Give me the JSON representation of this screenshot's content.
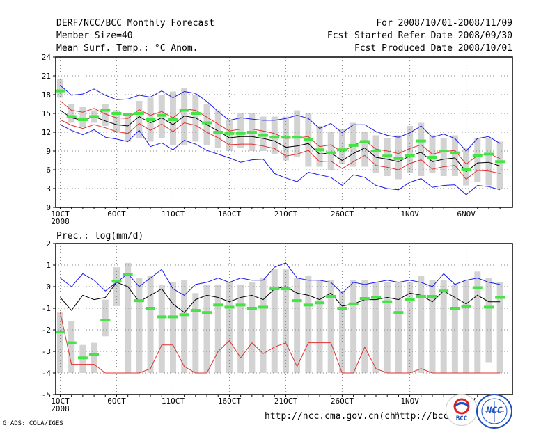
{
  "header": {
    "title": "DERF/NCC/BCC Monthly Forecast",
    "member_size": "Member Size=40",
    "variable": "Mean Surf. Temp.: °C Anom.",
    "period": "For 2008/10/01-2008/11/09",
    "refer_date": "Fcst Started Refer Date 2008/09/30",
    "produced_date": "Fcst Produced Date 2008/10/01"
  },
  "footer": {
    "grads_credit": "GrADS: COLA/IGES",
    "url_ncc": "http://ncc.cma.gov.cn(ch)",
    "url_bcc": "http://bcc.",
    "logo_bcc": "BCC",
    "logo_ncc": "NCC"
  },
  "colors": {
    "ensemble_bar": "#d3d3d3",
    "observation": "#44e444",
    "mean": "#000000",
    "spread_inner": "#e03030",
    "spread_outer": "#1a1aee"
  },
  "chart_data": [
    {
      "type": "line",
      "title": "Mean Surf. Temp.: °C Anom.",
      "ylim": [
        0,
        24
      ],
      "yticks": [
        "0",
        "3",
        "6",
        "9",
        "12",
        "15",
        "18",
        "21",
        "24"
      ],
      "x": [
        1,
        2,
        3,
        4,
        5,
        6,
        7,
        8,
        9,
        10,
        11,
        12,
        13,
        14,
        15,
        16,
        17,
        18,
        19,
        20,
        21,
        22,
        23,
        24,
        25,
        26,
        27,
        28,
        29,
        30,
        31,
        32,
        33,
        34,
        35,
        36,
        37,
        38,
        39,
        40
      ],
      "xtick_labels": [
        "1OCT",
        "6OCT",
        "11OCT",
        "16OCT",
        "21OCT",
        "26OCT",
        "1NOV",
        "6NOV"
      ],
      "xtick_positions": [
        1,
        6,
        11,
        16,
        21,
        26,
        32,
        37
      ],
      "xtick_sublabel": "2008",
      "grid": true,
      "boxes_low": [
        17.5,
        13.5,
        12.8,
        13.5,
        13,
        12,
        10.5,
        11,
        10.5,
        11,
        10,
        10,
        10.5,
        10,
        9.5,
        9,
        9.5,
        9,
        9,
        8.5,
        7.5,
        8,
        6.5,
        6.5,
        6,
        7,
        6.5,
        6.5,
        5.5,
        5,
        4.5,
        5.5,
        5,
        5.5,
        5,
        5,
        3.5,
        4,
        3.5,
        3
      ],
      "boxes_high": [
        20.5,
        16.5,
        16,
        15.5,
        16.5,
        15.5,
        15,
        17,
        17.5,
        18,
        18.5,
        19,
        18,
        16.5,
        15.5,
        14,
        15,
        15,
        14.5,
        14.5,
        14.5,
        15.5,
        15,
        13,
        12,
        12.5,
        13.5,
        12,
        11.5,
        11,
        11.5,
        13,
        13.5,
        11.5,
        11,
        11.5,
        9.5,
        11,
        11,
        10.5
      ],
      "series": [
        {
          "name": "ensemble mean",
          "values": [
            15.5,
            14.3,
            13.9,
            14.5,
            13.8,
            13.2,
            13.0,
            14.5,
            13.5,
            14.3,
            13.2,
            14.6,
            14.3,
            13.2,
            12.2,
            11.1,
            11.3,
            11.3,
            11.0,
            10.6,
            9.6,
            9.8,
            10.2,
            8.5,
            8.7,
            7.5,
            8.6,
            9.5,
            8.0,
            7.7,
            7.3,
            8.2,
            8.8,
            7.3,
            7.7,
            7.9,
            5.7,
            7.1,
            7.2,
            6.6
          ]
        },
        {
          "name": "inner spread upper",
          "values": [
            17.0,
            15.5,
            15.2,
            15.8,
            14.9,
            14.3,
            14.2,
            15.6,
            14.7,
            15.3,
            14.3,
            15.7,
            15.5,
            14.4,
            13.3,
            12.2,
            12.5,
            12.5,
            12.2,
            11.8,
            11.0,
            11.1,
            11.3,
            9.7,
            10.0,
            8.8,
            9.9,
            10.7,
            9.3,
            9.0,
            8.6,
            9.4,
            10.0,
            8.5,
            8.9,
            9.1,
            6.9,
            8.3,
            8.6,
            7.8
          ]
        },
        {
          "name": "inner spread lower",
          "values": [
            14.0,
            13.1,
            12.6,
            13.2,
            12.7,
            12.1,
            11.8,
            13.4,
            12.3,
            13.3,
            12.1,
            13.5,
            13.1,
            12.0,
            11.1,
            10.0,
            10.1,
            10.1,
            9.8,
            9.4,
            8.2,
            8.5,
            9.1,
            7.3,
            7.4,
            6.2,
            7.3,
            8.3,
            6.7,
            6.4,
            6.0,
            7.0,
            7.6,
            6.1,
            6.5,
            6.7,
            4.5,
            5.9,
            5.8,
            5.4
          ]
        },
        {
          "name": "outer spread upper",
          "values": [
            19.5,
            17.9,
            18.1,
            18.9,
            17.9,
            17.2,
            17.3,
            17.9,
            17.6,
            18.6,
            17.5,
            18.5,
            18.2,
            16.9,
            15.3,
            13.9,
            14.3,
            14.1,
            13.9,
            13.9,
            14.2,
            14.7,
            14.2,
            12.6,
            13.4,
            11.9,
            13.2,
            13.2,
            12.1,
            11.5,
            11.2,
            11.9,
            13.0,
            11.2,
            11.7,
            11.0,
            9.0,
            11.0,
            11.3,
            10.2
          ]
        },
        {
          "name": "outer spread lower",
          "values": [
            13.2,
            12.3,
            11.6,
            12.4,
            11.2,
            10.9,
            10.5,
            12.3,
            9.7,
            10.3,
            9.2,
            10.7,
            10.1,
            9.1,
            8.5,
            7.9,
            7.2,
            7.6,
            7.7,
            5.4,
            4.7,
            4.1,
            5.6,
            5.2,
            4.8,
            3.5,
            5.2,
            4.8,
            3.5,
            3.0,
            2.8,
            4.0,
            4.6,
            3.2,
            3.5,
            3.6,
            2.0,
            3.5,
            3.3,
            2.8
          ]
        },
        {
          "name": "observation",
          "values": [
            18.6,
            14.5,
            14.0,
            14.5,
            15.5,
            15.0,
            14.8,
            15.0,
            14.0,
            14.7,
            14.0,
            15.5,
            15.0,
            13.5,
            12.0,
            11.8,
            11.8,
            12.0,
            11.5,
            11.2,
            11.2,
            11.2,
            10.8,
            9.2,
            8.7,
            9.2,
            9.9,
            10.5,
            9.0,
            8.2,
            7.8,
            8.3,
            10.6,
            8.0,
            9.0,
            8.7,
            6.0,
            8.3,
            8.5,
            7.3
          ]
        }
      ]
    },
    {
      "type": "line",
      "title": "Prec.: log(mm/d)",
      "ylim": [
        -5,
        2
      ],
      "yticks": [
        "-5",
        "-4",
        "-3",
        "-2",
        "-1",
        "0",
        "1",
        "2"
      ],
      "x": [
        1,
        2,
        3,
        4,
        5,
        6,
        7,
        8,
        9,
        10,
        11,
        12,
        13,
        14,
        15,
        16,
        17,
        18,
        19,
        20,
        21,
        22,
        23,
        24,
        25,
        26,
        27,
        28,
        29,
        30,
        31,
        32,
        33,
        34,
        35,
        36,
        37,
        38,
        39,
        40
      ],
      "xtick_labels": [
        "1OCT",
        "6OCT",
        "11OCT",
        "16OCT",
        "21OCT",
        "26OCT",
        "1NOV",
        "6NOV"
      ],
      "xtick_positions": [
        1,
        6,
        11,
        16,
        21,
        26,
        32,
        37
      ],
      "xtick_sublabel": "2008",
      "grid": true,
      "boxes_low": [
        -4,
        -4,
        -4,
        -4,
        -2.3,
        -0.9,
        -4,
        -4,
        -4,
        -4,
        -4,
        -4,
        -4,
        -4,
        -4,
        -4,
        -4,
        -4,
        -4,
        -4,
        -4,
        -4,
        -4,
        -4,
        -4,
        -4,
        -4,
        -4,
        -4,
        -4,
        -4,
        -4,
        -4,
        -4,
        -4,
        -4,
        -4,
        -4,
        -3.5,
        -4
      ],
      "boxes_high": [
        -1.2,
        -1.6,
        -2.7,
        -2.6,
        -0.6,
        0.9,
        1.1,
        0.4,
        0.5,
        0.1,
        0.2,
        0.3,
        -0.3,
        0.1,
        0.1,
        0.2,
        0.1,
        0.2,
        0.4,
        0.8,
        0.8,
        0.4,
        0.5,
        0.3,
        0.3,
        -0.2,
        0.3,
        0.3,
        0.2,
        0.2,
        0.2,
        0.2,
        0.5,
        0.3,
        0.3,
        0.1,
        0.3,
        0.7,
        0.4,
        0.2
      ],
      "series": [
        {
          "name": "ensemble mean",
          "values": [
            -0.5,
            -1.1,
            -0.4,
            -0.6,
            -0.5,
            0.2,
            0.0,
            -0.7,
            -0.4,
            -0.1,
            -0.8,
            -1.2,
            -0.6,
            -0.4,
            -0.5,
            -0.7,
            -0.5,
            -0.4,
            -0.6,
            -0.1,
            0.0,
            -0.3,
            -0.4,
            -0.6,
            -0.3,
            -0.9,
            -0.8,
            -0.6,
            -0.6,
            -0.5,
            -0.6,
            -0.3,
            -0.4,
            -0.7,
            -0.2,
            -0.5,
            -0.8,
            -0.4,
            -0.7,
            -0.7
          ]
        },
        {
          "name": "outer spread upper",
          "values": [
            0.4,
            0.0,
            0.6,
            0.3,
            -0.2,
            0.2,
            0.6,
            0.0,
            0.4,
            0.8,
            -0.1,
            -0.4,
            0.1,
            0.2,
            0.4,
            0.2,
            0.4,
            0.3,
            0.3,
            0.9,
            1.1,
            0.4,
            0.3,
            0.3,
            0.2,
            -0.3,
            0.2,
            0.1,
            0.2,
            0.3,
            0.2,
            0.3,
            0.2,
            0.0,
            0.6,
            0.1,
            0.3,
            0.4,
            0.2,
            0.1
          ]
        },
        {
          "name": "outer spread lower",
          "values": [
            -1.2,
            -3.6,
            -3.6,
            -3.6,
            -4,
            -4,
            -4,
            -4,
            -3.8,
            -2.7,
            -2.7,
            -3.7,
            -4,
            -4,
            -3.0,
            -2.5,
            -3.3,
            -2.6,
            -3.1,
            -2.8,
            -2.6,
            -3.7,
            -2.6,
            -2.6,
            -2.6,
            -4,
            -4,
            -2.8,
            -3.8,
            -4,
            -4,
            -4,
            -3.8,
            -4,
            -4,
            -4,
            -4,
            -4,
            -4,
            -4
          ]
        },
        {
          "name": "observation",
          "values": [
            -2.1,
            -2.6,
            -3.3,
            -3.15,
            -1.55,
            0.25,
            0.55,
            -0.65,
            -1.0,
            -1.4,
            -1.4,
            -1.3,
            -1.1,
            -1.2,
            -0.85,
            -0.95,
            -0.85,
            -1.0,
            -0.95,
            -0.1,
            -0.1,
            -0.65,
            -0.85,
            -0.75,
            -0.45,
            -1.0,
            -0.8,
            -0.55,
            -0.5,
            -0.7,
            -1.2,
            -0.6,
            -0.45,
            -0.45,
            -0.2,
            -1.0,
            -0.9,
            -0.05,
            -0.95,
            -0.5
          ]
        }
      ]
    }
  ]
}
